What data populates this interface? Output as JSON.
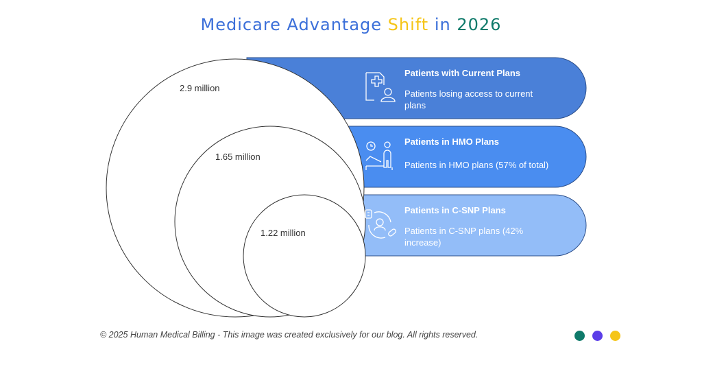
{
  "title": {
    "part1": "Medicare Advantage ",
    "part2": "Shift",
    "part3": " in ",
    "part4": "2026"
  },
  "colors": {
    "title_blue": "#3b6fd9",
    "title_yellow": "#f5c518",
    "title_green": "#0f7a6a",
    "band1": "#4a80d8",
    "band2": "#4a8df0",
    "band3": "#93bdf8",
    "dot1": "#0f7a6a",
    "dot2": "#5b3ee8",
    "dot3": "#f5c518"
  },
  "circles": [
    {
      "value_label": "2.9 million"
    },
    {
      "value_label": "1.65 million"
    },
    {
      "value_label": "1.22 million"
    }
  ],
  "bands": [
    {
      "title": "Patients with Current Plans",
      "description": "Patients losing access to current plans",
      "icon": "medical-document-user-icon"
    },
    {
      "title": "Patients in HMO Plans",
      "description": "Patients in HMO plans (57% of total)",
      "icon": "patient-clock-icon"
    },
    {
      "title": "Patients in C-SNP Plans",
      "description": "Patients in C-SNP plans (42% increase)",
      "icon": "patient-care-pill-icon"
    }
  ],
  "footer": "© 2025 Human Medical Billing - This image was created exclusively for our blog. All rights reserved."
}
